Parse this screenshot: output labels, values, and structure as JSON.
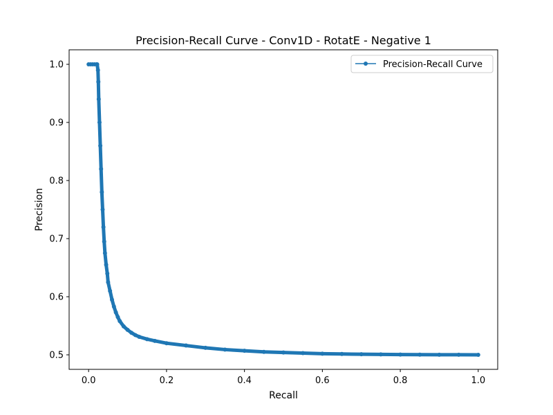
{
  "chart_data": {
    "type": "line",
    "title": "Precision-Recall Curve - Conv1D - RotatE - Negative 1",
    "xlabel": "Recall",
    "ylabel": "Precision",
    "xlim": [
      -0.05,
      1.05
    ],
    "ylim": [
      0.475,
      1.025
    ],
    "xticks": [
      0.0,
      0.2,
      0.4,
      0.6,
      0.8,
      1.0
    ],
    "xtick_labels": [
      "0.0",
      "0.2",
      "0.4",
      "0.6",
      "0.8",
      "1.0"
    ],
    "yticks": [
      0.5,
      0.6,
      0.7,
      0.8,
      0.9,
      1.0
    ],
    "ytick_labels": [
      "0.5",
      "0.6",
      "0.7",
      "0.8",
      "0.9",
      "1.0"
    ],
    "grid": false,
    "legend": {
      "placement": "top-right",
      "entries": [
        "Precision-Recall Curve"
      ]
    },
    "series": [
      {
        "name": "Precision-Recall Curve",
        "color": "#1f77b4",
        "marker": "circle",
        "x": [
          0.0,
          0.005,
          0.01,
          0.015,
          0.02,
          0.022,
          0.024,
          0.025,
          0.026,
          0.028,
          0.03,
          0.032,
          0.034,
          0.036,
          0.038,
          0.04,
          0.042,
          0.045,
          0.048,
          0.05,
          0.055,
          0.06,
          0.065,
          0.07,
          0.075,
          0.08,
          0.09,
          0.1,
          0.11,
          0.12,
          0.13,
          0.15,
          0.17,
          0.2,
          0.25,
          0.3,
          0.35,
          0.4,
          0.45,
          0.5,
          0.55,
          0.6,
          0.65,
          0.7,
          0.75,
          0.8,
          0.85,
          0.9,
          0.95,
          1.0
        ],
        "y": [
          1.0,
          1.0,
          1.0,
          1.0,
          1.0,
          1.0,
          0.99,
          0.97,
          0.94,
          0.9,
          0.86,
          0.82,
          0.78,
          0.75,
          0.72,
          0.695,
          0.675,
          0.655,
          0.64,
          0.625,
          0.61,
          0.595,
          0.583,
          0.573,
          0.565,
          0.558,
          0.549,
          0.543,
          0.538,
          0.534,
          0.531,
          0.527,
          0.524,
          0.52,
          0.516,
          0.512,
          0.509,
          0.507,
          0.505,
          0.504,
          0.503,
          0.502,
          0.5015,
          0.501,
          0.5007,
          0.5004,
          0.5003,
          0.5002,
          0.5001,
          0.5
        ]
      }
    ]
  }
}
